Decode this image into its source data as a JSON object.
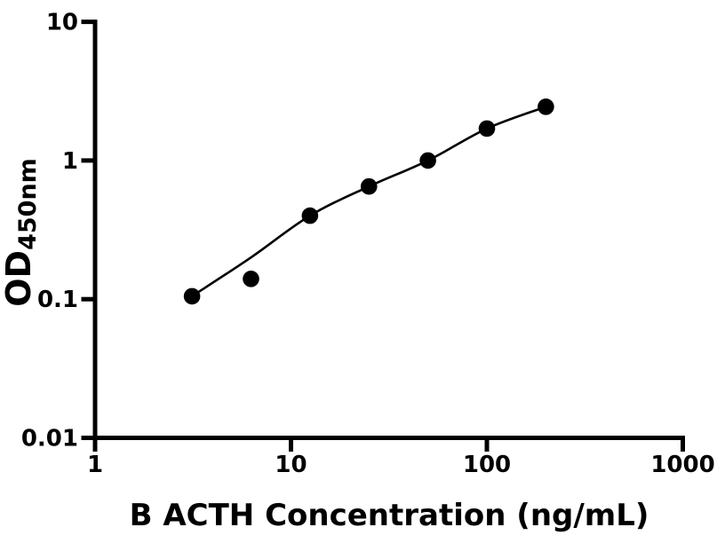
{
  "chart_data": {
    "type": "scatter",
    "title": "",
    "xlabel": "B ACTH Concentration (ng/mL)",
    "ylabel_main": "OD",
    "ylabel_sub": "450nm",
    "x_scale": "log",
    "y_scale": "log",
    "xlim": [
      1,
      1000
    ],
    "ylim": [
      0.01,
      10
    ],
    "grid": false,
    "legend": "none",
    "x_ticks": [
      1,
      10,
      100,
      1000
    ],
    "x_tick_labels": [
      "1",
      "10",
      "100",
      "1000"
    ],
    "y_ticks": [
      0.01,
      0.1,
      1,
      10
    ],
    "y_tick_labels": [
      "0.01",
      "0.1",
      "1",
      "10"
    ],
    "marker_color": "#000000",
    "line_color": "#000000",
    "axis_color": "#000000",
    "background_color": "#ffffff",
    "points": [
      {
        "x": 3.125,
        "y": 0.105
      },
      {
        "x": 6.25,
        "y": 0.14
      },
      {
        "x": 12.5,
        "y": 0.4
      },
      {
        "x": 25,
        "y": 0.65
      },
      {
        "x": 50,
        "y": 1.0
      },
      {
        "x": 100,
        "y": 1.7
      },
      {
        "x": 200,
        "y": 2.44
      }
    ],
    "fit_curve": [
      {
        "x": 3.125,
        "y": 0.105
      },
      {
        "x": 6.25,
        "y": 0.2
      },
      {
        "x": 12.5,
        "y": 0.4
      },
      {
        "x": 25,
        "y": 0.65
      },
      {
        "x": 50,
        "y": 1.0
      },
      {
        "x": 100,
        "y": 1.7
      },
      {
        "x": 200,
        "y": 2.44
      }
    ]
  }
}
